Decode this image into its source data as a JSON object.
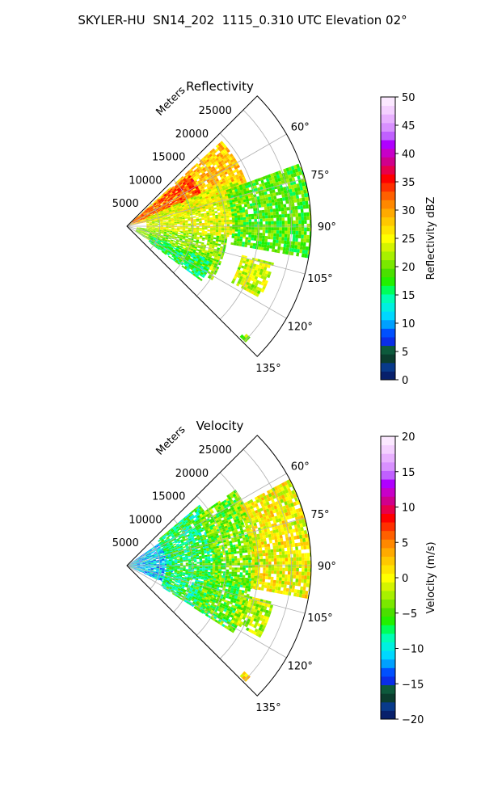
{
  "figure": {
    "title": "SKYLER-HU  SN14_202  1115_0.310 UTC Elevation 02°"
  },
  "chart_data": [
    {
      "type": "heatmap",
      "projection": "polar-sector",
      "title": "Reflectivity",
      "range_axis_label": "Meters",
      "range_ticks": [
        5000,
        10000,
        15000,
        20000,
        25000
      ],
      "range_tick_labels": [
        "5000",
        "10000",
        "15000",
        "20000",
        "25000"
      ],
      "range_max": 28000,
      "azimuth_ticks": [
        60,
        75,
        90,
        105,
        120,
        135
      ],
      "azimuth_tick_labels": [
        "60°",
        "75°",
        "90°",
        "105°",
        "120°",
        "135°"
      ],
      "azimuth_range": [
        45,
        135
      ],
      "grid": true,
      "colorbar": {
        "label": "Reflectivity dBZ",
        "min": 0,
        "max": 50,
        "ticks": [
          0,
          5,
          10,
          15,
          20,
          25,
          30,
          35,
          40,
          45,
          50
        ],
        "tick_labels": [
          "0",
          "5",
          "10",
          "15",
          "20",
          "25",
          "30",
          "35",
          "40",
          "45",
          "50"
        ],
        "colors": [
          "#08206b",
          "#083a8a",
          "#0b3d2e",
          "#0d5a3c",
          "#0a2ee8",
          "#0050ff",
          "#00a0ff",
          "#00d8ff",
          "#00f0e0",
          "#00ffb4",
          "#00ff5a",
          "#22f000",
          "#4ae000",
          "#7ae800",
          "#a8f000",
          "#d4f400",
          "#ffff00",
          "#ffe400",
          "#ffc800",
          "#ffaa00",
          "#ff8800",
          "#ff6000",
          "#ff3000",
          "#ff0000",
          "#e8004a",
          "#d0008c",
          "#c800c8",
          "#b000ff",
          "#c060ff",
          "#d890ff",
          "#e8b0ff",
          "#f4d0ff",
          "#fbe8ff"
        ]
      },
      "regions": [
        {
          "az": [
            48,
            78
          ],
          "r": [
            500,
            19000
          ],
          "value": 28
        },
        {
          "az": [
            50,
            66
          ],
          "r": [
            1000,
            12000
          ],
          "value": 33
        },
        {
          "az": [
            66,
            96
          ],
          "r": [
            3000,
            18000
          ],
          "value": 24
        },
        {
          "az": [
            70,
            100
          ],
          "r": [
            16000,
            28000
          ],
          "value": 19
        },
        {
          "az": [
            96,
            122
          ],
          "r": [
            1500,
            15000
          ],
          "value": 21
        },
        {
          "az": [
            112,
            126
          ],
          "r": [
            4000,
            14000
          ],
          "value": 16
        },
        {
          "az": [
            104,
            118
          ],
          "r": [
            18000,
            23000
          ],
          "value": 23
        },
        {
          "az": [
            132,
            134
          ],
          "r": [
            24000,
            25000
          ],
          "value": 20
        }
      ]
    },
    {
      "type": "heatmap",
      "projection": "polar-sector",
      "title": "Velocity",
      "range_axis_label": "Meters",
      "range_ticks": [
        5000,
        10000,
        15000,
        20000,
        25000
      ],
      "range_tick_labels": [
        "5000",
        "10000",
        "15000",
        "20000",
        "25000"
      ],
      "range_max": 28000,
      "azimuth_ticks": [
        60,
        75,
        90,
        105,
        120,
        135
      ],
      "azimuth_tick_labels": [
        "60°",
        "75°",
        "90°",
        "105°",
        "120°",
        "135°"
      ],
      "azimuth_range": [
        45,
        135
      ],
      "grid": true,
      "colorbar": {
        "label": "Velocity (m/s)",
        "min": -20,
        "max": 20,
        "ticks": [
          -20,
          -15,
          -10,
          -5,
          0,
          5,
          10,
          15,
          20
        ],
        "tick_labels": [
          "−20",
          "−15",
          "−10",
          "−5",
          "0",
          "5",
          "10",
          "15",
          "20"
        ],
        "colors": [
          "#08206b",
          "#083a8a",
          "#0b3d2e",
          "#0d5a3c",
          "#0a2ee8",
          "#0050ff",
          "#00a0ff",
          "#00d8ff",
          "#00f0e0",
          "#00ffb4",
          "#00ff5a",
          "#22f000",
          "#4ae000",
          "#7ae800",
          "#a8f000",
          "#d4f400",
          "#ffff00",
          "#ffe400",
          "#ffc800",
          "#ffaa00",
          "#ff8800",
          "#ff6000",
          "#ff3000",
          "#ff0000",
          "#e8004a",
          "#d0008c",
          "#c800c8",
          "#b000ff",
          "#c060ff",
          "#d890ff",
          "#e8b0ff",
          "#f4d0ff",
          "#fbe8ff"
        ]
      },
      "regions": [
        {
          "az": [
            55,
            115
          ],
          "r": [
            300,
            7000
          ],
          "value": -11
        },
        {
          "az": [
            50,
            122
          ],
          "r": [
            6000,
            14000
          ],
          "value": -7
        },
        {
          "az": [
            55,
            100
          ],
          "r": [
            13000,
            20000
          ],
          "value": -4
        },
        {
          "az": [
            96,
            122
          ],
          "r": [
            12000,
            19000
          ],
          "value": -5
        },
        {
          "az": [
            62,
            100
          ],
          "r": [
            19000,
            28000
          ],
          "value": 0
        },
        {
          "az": [
            104,
            118
          ],
          "r": [
            18000,
            23000
          ],
          "value": -2
        },
        {
          "az": [
            132,
            134
          ],
          "r": [
            24000,
            25000
          ],
          "value": 1
        }
      ]
    }
  ]
}
